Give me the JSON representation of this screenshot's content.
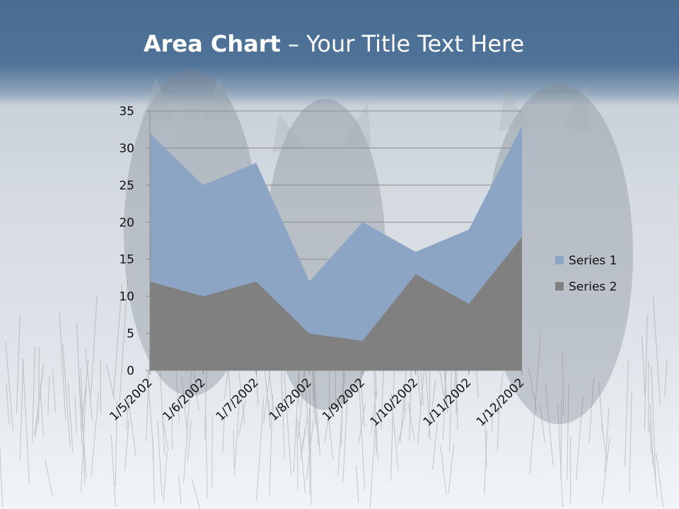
{
  "slide": {
    "title_bold": "Area Chart",
    "title_rest": " – Your Title Text Here"
  },
  "chart_data": {
    "type": "area",
    "stacked": true,
    "categories": [
      "1/5/2002",
      "1/6/2002",
      "1/7/2002",
      "1/8/2002",
      "1/9/2002",
      "1/10/2002",
      "1/11/2002",
      "1/12/2002"
    ],
    "series": [
      {
        "name": "Series 2",
        "values": [
          12,
          10,
          12,
          5,
          4,
          13,
          9,
          18
        ],
        "color": "#808080"
      },
      {
        "name": "Series 1",
        "values": [
          20,
          15,
          16,
          7,
          16,
          3,
          10,
          15
        ],
        "color": "#8da5c4"
      }
    ],
    "y_ticks": [
      "0",
      "5",
      "10",
      "15",
      "20",
      "25",
      "30",
      "35"
    ],
    "ylim": [
      0,
      35
    ],
    "grid": true,
    "legend_position": "right",
    "legend": [
      "Series 1",
      "Series 2"
    ],
    "colors": {
      "series1": "#8da5c4",
      "series2": "#808080",
      "title_bar": "#4f7398"
    }
  }
}
